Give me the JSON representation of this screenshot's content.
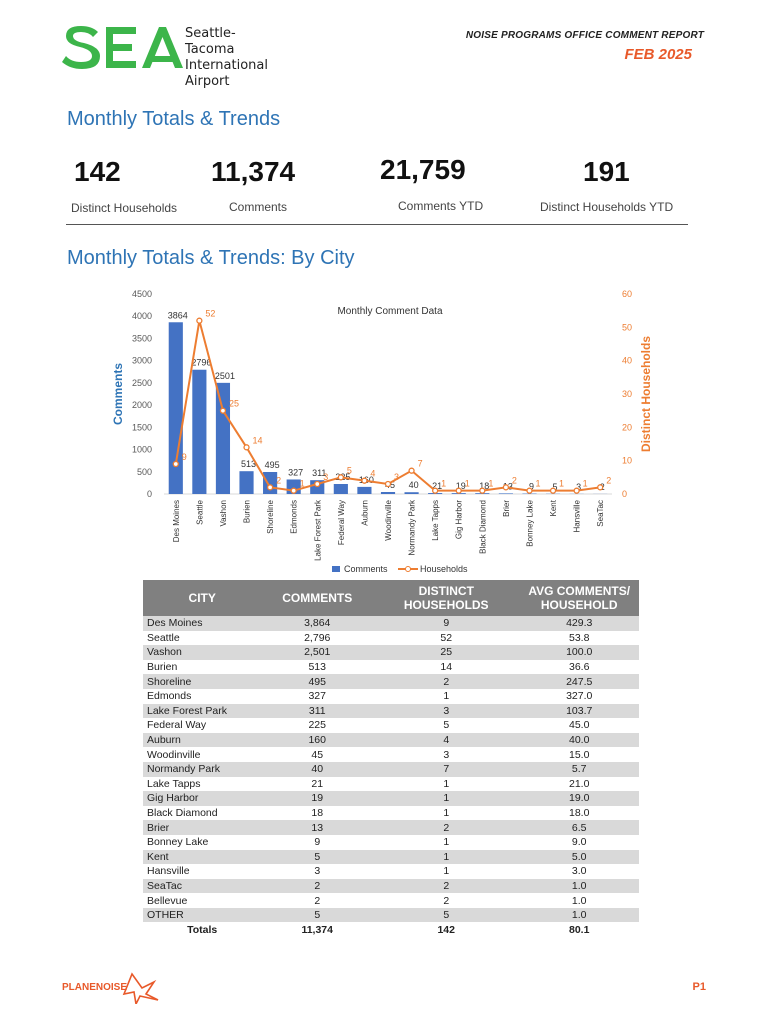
{
  "header": {
    "logo_text_line1": "Seattle-Tacoma",
    "logo_text_line2": "International",
    "logo_text_line3": "Airport",
    "report_title": "NOISE PROGRAMS OFFICE COMMENT REPORT",
    "report_date": "FEB 2025",
    "brand_color": "#3cb54a",
    "accent_color": "#e8592a"
  },
  "section1": {
    "heading": "Monthly Totals & Trends"
  },
  "kpis": [
    {
      "value": "142",
      "label": "Distinct Households"
    },
    {
      "value": "11,374",
      "label": "Comments"
    },
    {
      "value": "21,759",
      "label": "Comments YTD"
    },
    {
      "value": "191",
      "label": "Distinct Households YTD"
    }
  ],
  "section2": {
    "heading": "Monthly Totals & Trends: By City"
  },
  "chart_data": {
    "type": "bar",
    "title": "Monthly Comment Data",
    "categories": [
      "Des Moines",
      "Seattle",
      "Vashon",
      "Burien",
      "Shoreline",
      "Edmonds",
      "Lake Forest Park",
      "Federal Way",
      "Auburn",
      "Woodinville",
      "Normandy Park",
      "Lake Tapps",
      "Gig Harbor",
      "Black Diamond",
      "Brier",
      "Bonney Lake",
      "Kent",
      "Hansville",
      "SeaTac"
    ],
    "series": [
      {
        "name": "Comments",
        "type": "bar",
        "axis": "left",
        "color": "#4472c4",
        "values": [
          3864,
          2796,
          2501,
          513,
          495,
          327,
          311,
          225,
          160,
          45,
          40,
          21,
          19,
          18,
          13,
          9,
          5,
          3,
          2
        ]
      },
      {
        "name": "Households",
        "type": "line",
        "axis": "right",
        "color": "#ed7d31",
        "values": [
          9,
          52,
          25,
          14,
          2,
          1,
          3,
          5,
          4,
          3,
          7,
          1,
          1,
          1,
          2,
          1,
          1,
          1,
          2
        ]
      }
    ],
    "ylabel": "Comments",
    "y2label": "Distinct Households",
    "ylim": [
      0,
      4500
    ],
    "y2lim": [
      0,
      60
    ],
    "yticks": [
      "0",
      "500",
      "1000",
      "1500",
      "2000",
      "2500",
      "3000",
      "3500",
      "4000",
      "4500"
    ],
    "y2ticks": [
      "0",
      "10",
      "20",
      "30",
      "40",
      "50",
      "60"
    ],
    "legend_position": "bottom"
  },
  "table": {
    "headers": [
      "CITY",
      "COMMENTS",
      "DISTINCT HOUSEHOLDS",
      "AVG COMMENTS/ HOUSEHOLD"
    ],
    "rows": [
      [
        "Des Moines",
        "3,864",
        "9",
        "429.3"
      ],
      [
        "Seattle",
        "2,796",
        "52",
        "53.8"
      ],
      [
        "Vashon",
        "2,501",
        "25",
        "100.0"
      ],
      [
        "Burien",
        "513",
        "14",
        "36.6"
      ],
      [
        "Shoreline",
        "495",
        "2",
        "247.5"
      ],
      [
        "Edmonds",
        "327",
        "1",
        "327.0"
      ],
      [
        "Lake Forest Park",
        "311",
        "3",
        "103.7"
      ],
      [
        "Federal Way",
        "225",
        "5",
        "45.0"
      ],
      [
        "Auburn",
        "160",
        "4",
        "40.0"
      ],
      [
        "Woodinville",
        "45",
        "3",
        "15.0"
      ],
      [
        "Normandy Park",
        "40",
        "7",
        "5.7"
      ],
      [
        "Lake Tapps",
        "21",
        "1",
        "21.0"
      ],
      [
        "Gig Harbor",
        "19",
        "1",
        "19.0"
      ],
      [
        "Black Diamond",
        "18",
        "1",
        "18.0"
      ],
      [
        "Brier",
        "13",
        "2",
        "6.5"
      ],
      [
        "Bonney Lake",
        "9",
        "1",
        "9.0"
      ],
      [
        "Kent",
        "5",
        "1",
        "5.0"
      ],
      [
        "Hansville",
        "3",
        "1",
        "3.0"
      ],
      [
        "SeaTac",
        "2",
        "2",
        "1.0"
      ],
      [
        "Bellevue",
        "2",
        "2",
        "1.0"
      ],
      [
        "OTHER",
        "5",
        "5",
        "1.0"
      ]
    ],
    "totals": [
      "Totals",
      "11,374",
      "142",
      "80.1"
    ]
  },
  "footer": {
    "brand": "PLANENOISE",
    "page": "P1"
  }
}
